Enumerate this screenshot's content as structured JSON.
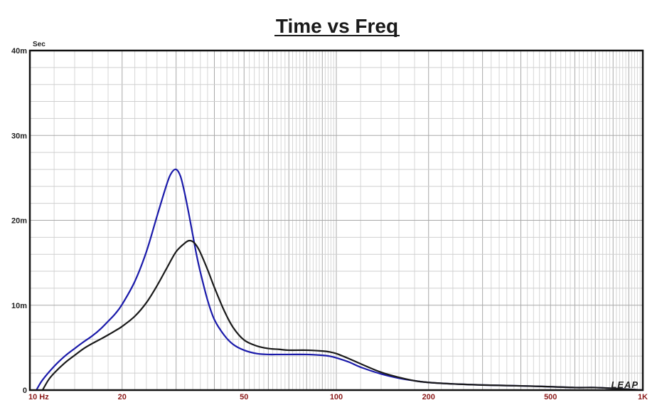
{
  "chart_data": {
    "type": "line",
    "title": "Time vs Freq",
    "y_unit_label": "Sec",
    "x_scale": "log",
    "xlim": [
      10,
      1000
    ],
    "ylim": [
      0,
      0.04
    ],
    "grid": true,
    "y_ticks": [
      {
        "value": 0,
        "label": "0"
      },
      {
        "value": 0.01,
        "label": "10m"
      },
      {
        "value": 0.02,
        "label": "20m"
      },
      {
        "value": 0.03,
        "label": "30m"
      },
      {
        "value": 0.04,
        "label": "40m"
      }
    ],
    "x_ticks": [
      {
        "value": 10,
        "label": "10  Hz"
      },
      {
        "value": 20,
        "label": "20"
      },
      {
        "value": 50,
        "label": "50"
      },
      {
        "value": 100,
        "label": "100"
      },
      {
        "value": 200,
        "label": "200"
      },
      {
        "value": 500,
        "label": "500"
      },
      {
        "value": 1000,
        "label": "1K"
      }
    ],
    "watermark": "LEAP",
    "series": [
      {
        "color": "#1a1aaa",
        "x": [
          10.5,
          11,
          12,
          13,
          14,
          15,
          16,
          17,
          18,
          19,
          20,
          22,
          24,
          26,
          28,
          29,
          30,
          31,
          32,
          33,
          34,
          35,
          36,
          38,
          40,
          43,
          46,
          50,
          55,
          60,
          65,
          70,
          80,
          90,
          95,
          100,
          110,
          120,
          140,
          160,
          180,
          200,
          250,
          300,
          400,
          500,
          600,
          700,
          800,
          900,
          1000
        ],
        "y": [
          0,
          0.0012,
          0.0028,
          0.004,
          0.0049,
          0.0057,
          0.0064,
          0.0072,
          0.0081,
          0.009,
          0.0101,
          0.0128,
          0.0163,
          0.0205,
          0.0243,
          0.0256,
          0.026,
          0.0252,
          0.0232,
          0.0208,
          0.0183,
          0.0159,
          0.0139,
          0.0106,
          0.0083,
          0.0065,
          0.0054,
          0.0047,
          0.0043,
          0.0042,
          0.0042,
          0.0042,
          0.0042,
          0.0041,
          0.004,
          0.0038,
          0.0033,
          0.0027,
          0.0019,
          0.0014,
          0.0011,
          0.0009,
          0.0007,
          0.0006,
          0.0005,
          0.0004,
          0.0003,
          0.0003,
          0.0002,
          0.0001,
          0
        ]
      },
      {
        "color": "#1a1a1a",
        "x": [
          11,
          11.5,
          12,
          13,
          14,
          15,
          16,
          17,
          18,
          19,
          20,
          22,
          24,
          26,
          28,
          30,
          32,
          33,
          34,
          35,
          36,
          38,
          40,
          43,
          46,
          50,
          55,
          60,
          65,
          70,
          80,
          90,
          95,
          100,
          110,
          120,
          140,
          160,
          180,
          200,
          250,
          300,
          400,
          500,
          600,
          700,
          800,
          900,
          1000
        ],
        "y": [
          0,
          0.0012,
          0.002,
          0.0032,
          0.0041,
          0.0049,
          0.0055,
          0.006,
          0.0065,
          0.007,
          0.0075,
          0.0087,
          0.0103,
          0.0123,
          0.0144,
          0.0163,
          0.0173,
          0.0176,
          0.0175,
          0.017,
          0.0162,
          0.0142,
          0.0121,
          0.0094,
          0.0074,
          0.0059,
          0.0052,
          0.0049,
          0.0048,
          0.0047,
          0.0047,
          0.0046,
          0.0045,
          0.0043,
          0.0037,
          0.0031,
          0.0021,
          0.0015,
          0.0011,
          0.0009,
          0.0007,
          0.0006,
          0.0005,
          0.0004,
          0.0003,
          0.0003,
          0.0002,
          0.0001,
          0
        ]
      }
    ]
  }
}
